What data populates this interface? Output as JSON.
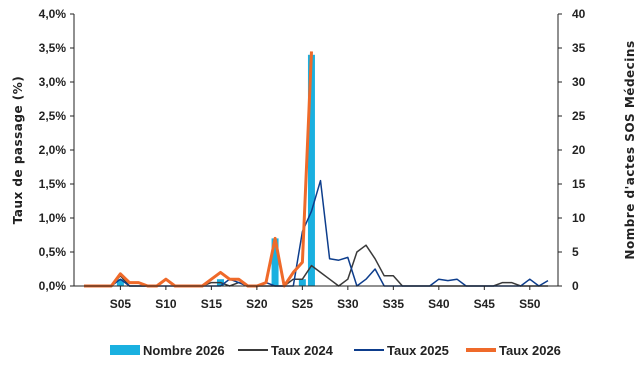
{
  "chart_data": {
    "type": "bar+line",
    "x_tick_labels": [
      "S05",
      "S10",
      "S15",
      "S20",
      "S25",
      "S30",
      "S35",
      "S40",
      "S45",
      "S50"
    ],
    "x_tick_weeks": [
      5,
      10,
      15,
      20,
      25,
      30,
      35,
      40,
      45,
      50
    ],
    "weeks": [
      1,
      2,
      3,
      4,
      5,
      6,
      7,
      8,
      9,
      10,
      11,
      12,
      13,
      14,
      15,
      16,
      17,
      18,
      19,
      20,
      21,
      22,
      23,
      24,
      25,
      26,
      27,
      28,
      29,
      30,
      31,
      32,
      33,
      34,
      35,
      36,
      37,
      38,
      39,
      40,
      41,
      42,
      43,
      44,
      45,
      46,
      47,
      48,
      49,
      50,
      51,
      52
    ],
    "y_left": {
      "label": "Taux de passage (%)",
      "ylim": [
        0,
        4.0
      ],
      "ticks": [
        "0,0%",
        "0,5%",
        "1,0%",
        "1,5%",
        "2,0%",
        "2,5%",
        "3,0%",
        "3,5%",
        "4,0%"
      ]
    },
    "y_right": {
      "label": "Nombre d'actes SOS Médecins",
      "ylim": [
        0,
        40
      ],
      "ticks": [
        "0",
        "5",
        "10",
        "15",
        "20",
        "25",
        "30",
        "35",
        "40"
      ]
    },
    "series": [
      {
        "name": "Nombre 2026",
        "kind": "bar",
        "axis": "right",
        "color": "#1ab0e0",
        "x": [
          5,
          16,
          22,
          25,
          26
        ],
        "values": [
          1,
          1,
          7,
          1,
          34
        ]
      },
      {
        "name": "Taux 2024",
        "kind": "line",
        "axis": "left",
        "color": "#3a3a3a",
        "values": [
          0,
          0,
          0,
          0,
          0.15,
          0,
          0,
          0,
          0,
          0.1,
          0,
          0,
          0,
          0,
          0.05,
          0.05,
          0,
          0.05,
          0,
          0,
          0,
          0,
          0,
          0.1,
          0.1,
          0.3,
          0.2,
          0.1,
          0,
          0.1,
          0.5,
          0.6,
          0.4,
          0.15,
          0.15,
          0,
          0,
          0,
          0,
          0,
          0,
          0,
          0,
          0,
          0,
          0,
          0.05,
          0.05,
          0,
          0,
          0,
          0
        ]
      },
      {
        "name": "Taux 2025",
        "kind": "line",
        "axis": "left",
        "color": "#0d3d8c",
        "values": [
          0,
          0,
          0,
          0,
          0.1,
          0,
          0,
          0,
          0,
          0,
          0,
          0,
          0,
          0,
          0,
          0,
          0.1,
          0.05,
          0,
          0,
          0.05,
          0,
          0,
          0,
          0.8,
          1.1,
          1.55,
          0.4,
          0.38,
          0.42,
          0,
          0.1,
          0.25,
          0,
          0,
          0,
          0,
          0,
          0,
          0.1,
          0.08,
          0.1,
          0,
          0,
          0,
          0,
          0,
          0,
          0,
          0.1,
          0,
          0.08
        ]
      },
      {
        "name": "Taux 2026",
        "kind": "line",
        "axis": "left",
        "color": "#ef6a2a",
        "values": [
          0,
          0,
          0,
          0,
          0.18,
          0.05,
          0.05,
          0,
          0,
          0.1,
          0,
          0,
          0,
          0,
          0.1,
          0.2,
          0.1,
          0.1,
          0,
          0,
          0.05,
          0.7,
          0,
          0.2,
          0.35,
          3.45
        ]
      }
    ]
  }
}
